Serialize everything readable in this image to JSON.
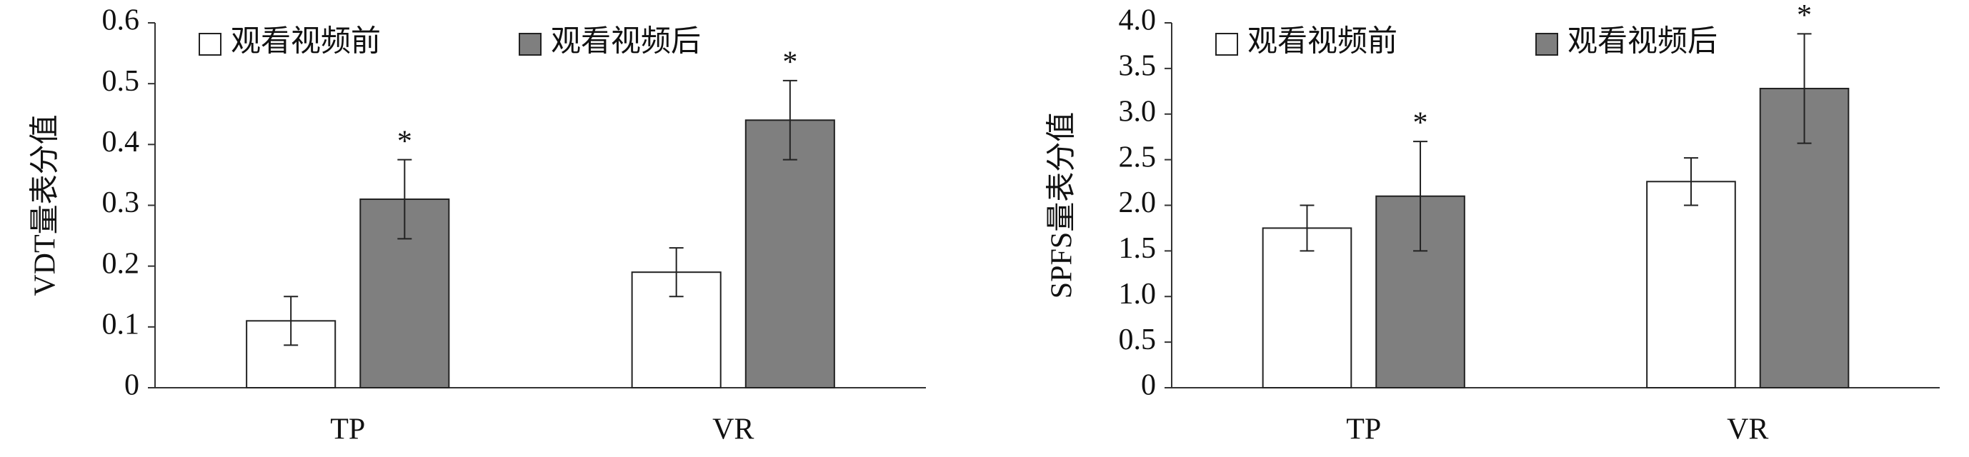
{
  "chart_data": [
    {
      "type": "bar",
      "y_label": "VDT量表分值",
      "categories": [
        "TP",
        "VR"
      ],
      "series": [
        {
          "name": "观看视频前",
          "color": "#ffffff",
          "values": [
            0.11,
            0.19
          ],
          "errors": [
            0.04,
            0.04
          ]
        },
        {
          "name": "观看视频后",
          "color": "#7f7f7f",
          "values": [
            0.31,
            0.44
          ],
          "errors": [
            0.065,
            0.065
          ],
          "annotations": [
            "*",
            "*"
          ]
        }
      ],
      "ylim": [
        0,
        0.6
      ],
      "yticks": [
        0,
        0.1,
        0.2,
        0.3,
        0.4,
        0.5,
        0.6
      ],
      "grid": false,
      "legend": "top"
    },
    {
      "type": "bar",
      "y_label": "SPFS量表分值",
      "categories": [
        "TP",
        "VR"
      ],
      "series": [
        {
          "name": "观看视频前",
          "color": "#ffffff",
          "values": [
            1.75,
            2.26
          ],
          "errors": [
            0.25,
            0.26
          ]
        },
        {
          "name": "观看视频后",
          "color": "#7f7f7f",
          "values": [
            2.1,
            3.28
          ],
          "errors": [
            0.6,
            0.6
          ],
          "annotations": [
            "*",
            "*"
          ]
        }
      ],
      "ylim": [
        0,
        4
      ],
      "yticks": [
        0,
        0.5,
        {
          "value": 1,
          "label": "1.0"
        },
        1.5,
        {
          "value": 2,
          "label": "2.0"
        },
        2.5,
        {
          "value": 3,
          "label": "3.0"
        },
        3.5,
        {
          "value": 4,
          "label": "4.0"
        }
      ],
      "grid": false,
      "legend": "top"
    }
  ]
}
